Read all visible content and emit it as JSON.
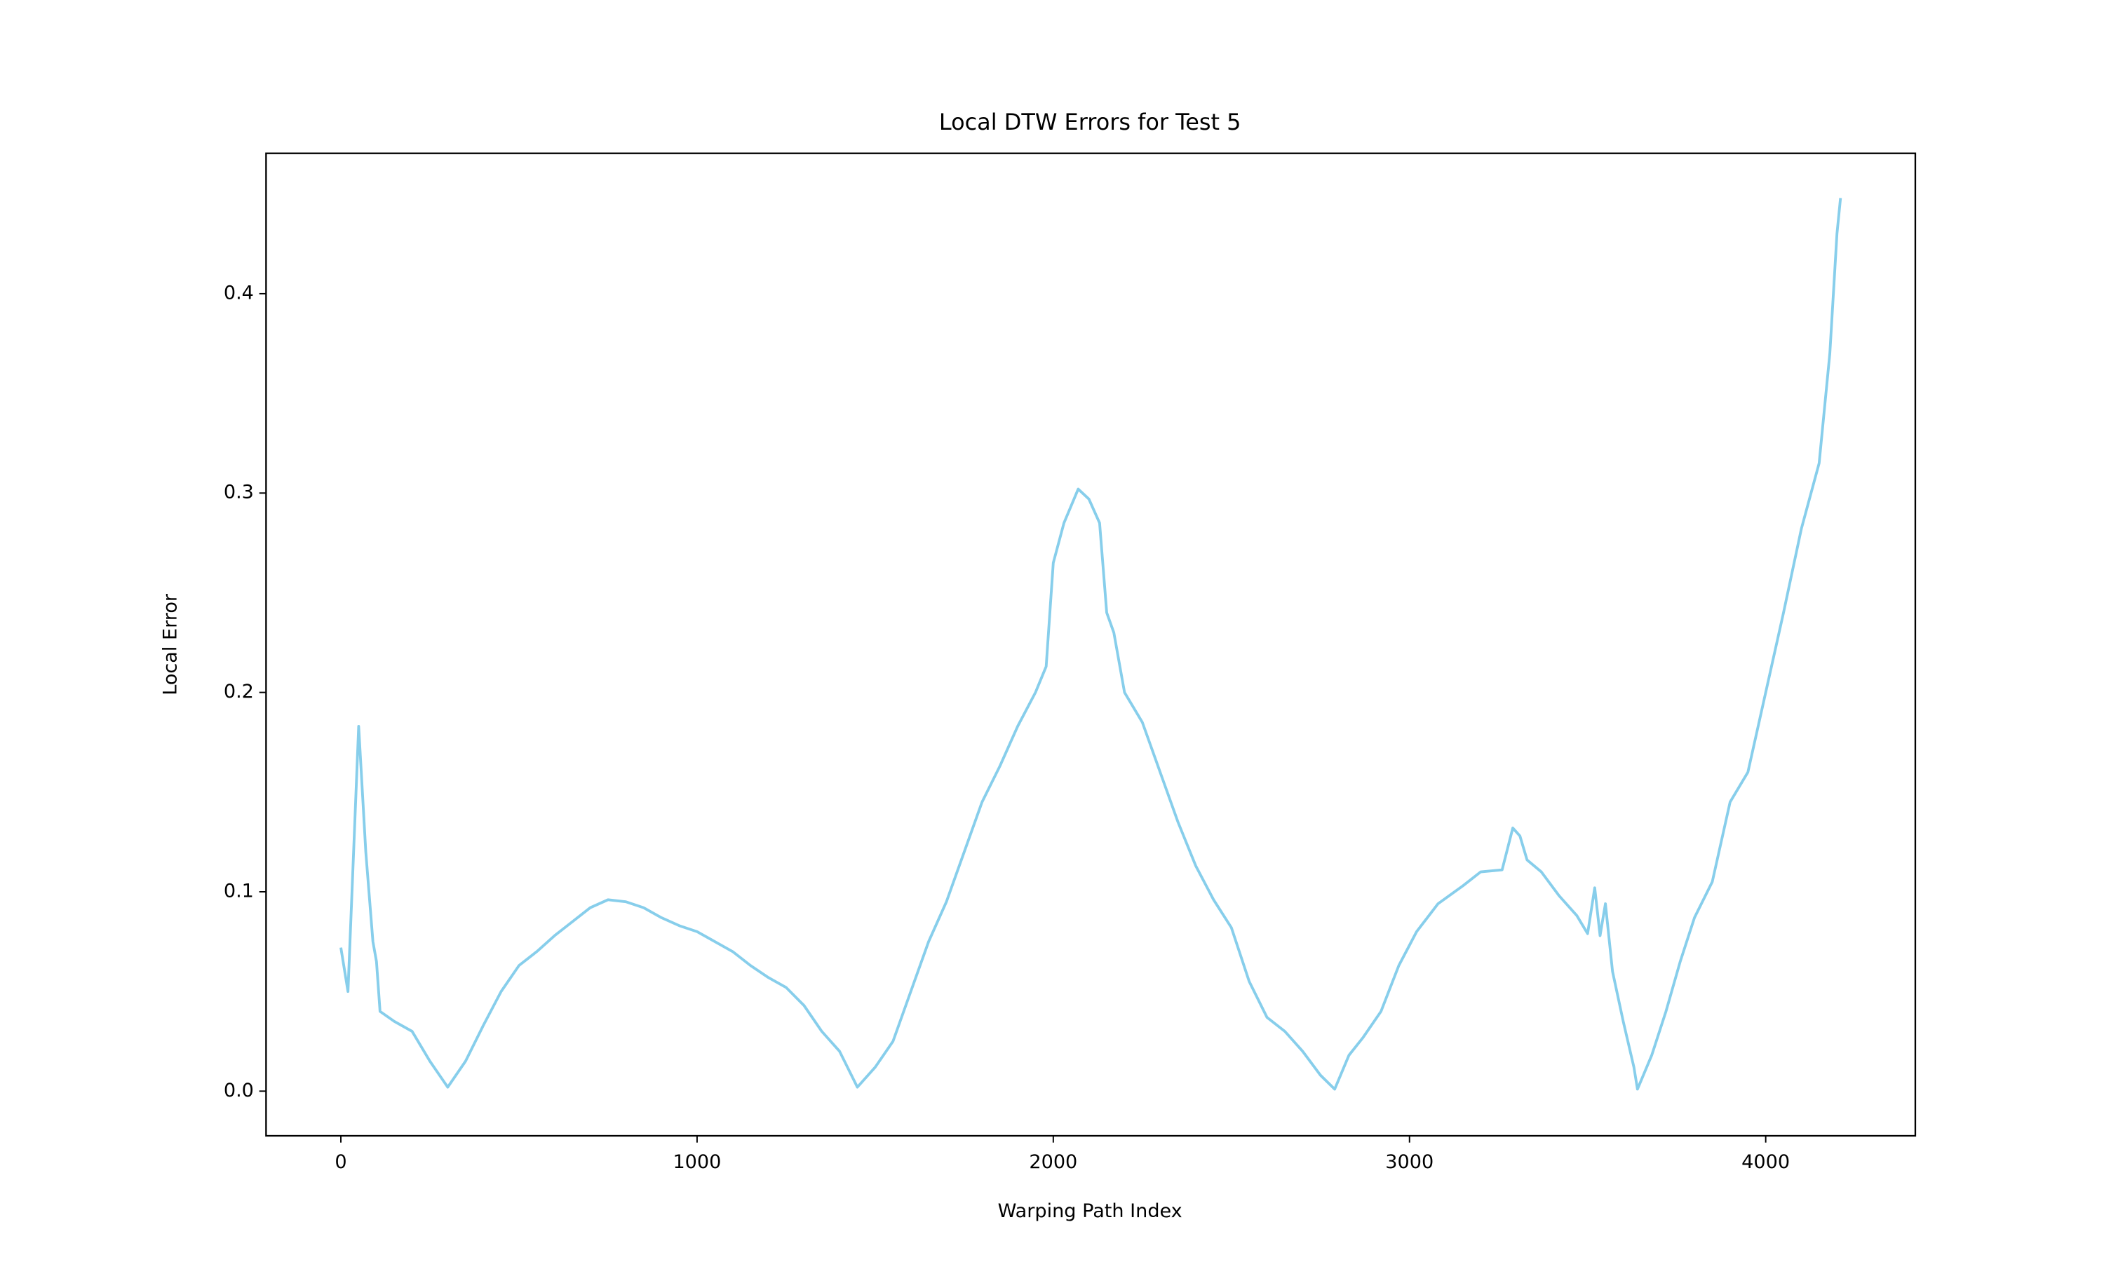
{
  "chart_data": {
    "type": "line",
    "title": "Local DTW Errors for Test 5",
    "x_label": "Warping Path Index",
    "y_label": "Local Error",
    "xlim": [
      -210,
      4420
    ],
    "ylim": [
      -0.0224,
      0.4704
    ],
    "xticks": [
      0,
      1000,
      2000,
      3000,
      4000
    ],
    "yticks": [
      {
        "value": 0,
        "label": "0.0"
      },
      0.1,
      0.2,
      0.3,
      0.4
    ],
    "grid": false,
    "series": [
      {
        "color": "#87ceeb",
        "x": [
          0,
          20,
          50,
          70,
          90,
          100,
          110,
          150,
          200,
          250,
          300,
          350,
          400,
          450,
          500,
          550,
          600,
          650,
          700,
          750,
          800,
          850,
          900,
          950,
          1000,
          1050,
          1100,
          1150,
          1200,
          1250,
          1300,
          1350,
          1400,
          1450,
          1500,
          1550,
          1600,
          1650,
          1700,
          1750,
          1800,
          1850,
          1900,
          1950,
          1980,
          2000,
          2030,
          2070,
          2100,
          2130,
          2150,
          2170,
          2200,
          2250,
          2300,
          2350,
          2400,
          2450,
          2500,
          2550,
          2600,
          2650,
          2700,
          2750,
          2790,
          2830,
          2870,
          2920,
          2970,
          3020,
          3080,
          3150,
          3200,
          3260,
          3290,
          3310,
          3330,
          3370,
          3420,
          3470,
          3500,
          3520,
          3535,
          3550,
          3570,
          3600,
          3630,
          3640,
          3680,
          3720,
          3760,
          3800,
          3850,
          3900,
          3950,
          4000,
          4050,
          4100,
          4150,
          4180,
          4200,
          4210
        ],
        "values": [
          0.072,
          0.05,
          0.183,
          0.12,
          0.075,
          0.065,
          0.04,
          0.035,
          0.03,
          0.015,
          0.002,
          0.015,
          0.033,
          0.05,
          0.063,
          0.07,
          0.078,
          0.085,
          0.092,
          0.096,
          0.095,
          0.092,
          0.087,
          0.083,
          0.08,
          0.075,
          0.07,
          0.063,
          0.057,
          0.052,
          0.043,
          0.03,
          0.02,
          0.002,
          0.012,
          0.025,
          0.05,
          0.075,
          0.095,
          0.12,
          0.145,
          0.163,
          0.183,
          0.2,
          0.213,
          0.265,
          0.285,
          0.302,
          0.297,
          0.285,
          0.24,
          0.23,
          0.2,
          0.185,
          0.16,
          0.135,
          0.113,
          0.096,
          0.082,
          0.055,
          0.037,
          0.03,
          0.02,
          0.008,
          0.001,
          0.018,
          0.027,
          0.04,
          0.063,
          0.08,
          0.094,
          0.103,
          0.11,
          0.111,
          0.132,
          0.128,
          0.116,
          0.11,
          0.098,
          0.088,
          0.079,
          0.102,
          0.078,
          0.094,
          0.06,
          0.035,
          0.012,
          0.001,
          0.018,
          0.04,
          0.065,
          0.087,
          0.105,
          0.145,
          0.16,
          0.2,
          0.24,
          0.282,
          0.315,
          0.37,
          0.43,
          0.448
        ]
      }
    ]
  }
}
